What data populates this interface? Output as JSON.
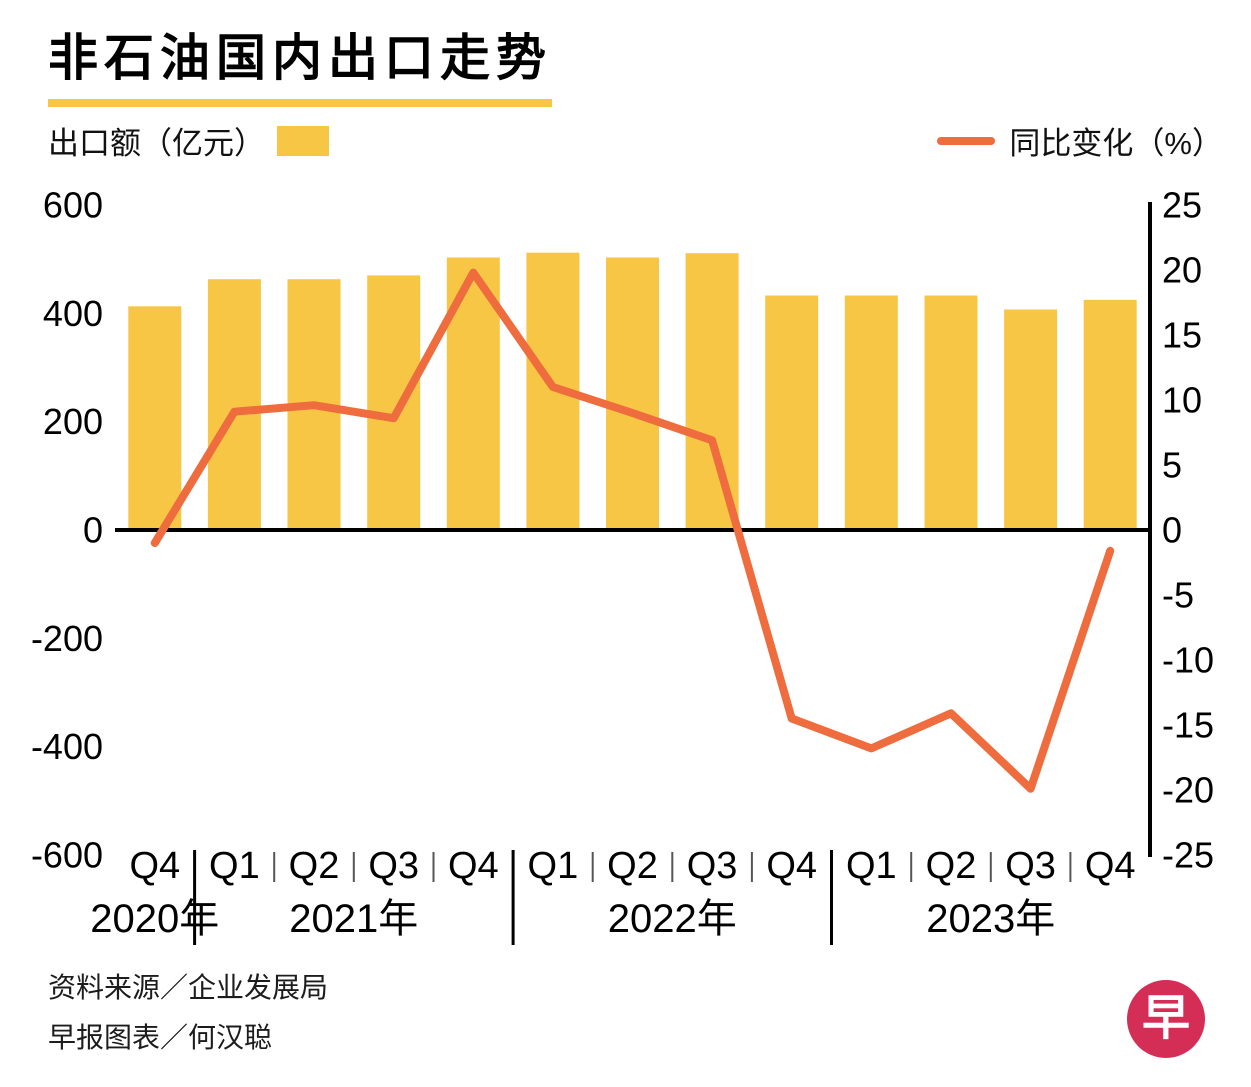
{
  "header": {
    "title": "非石油国内出口走势"
  },
  "legend": {
    "bar_label": "出口额（亿元）",
    "line_label": "同比变化（%）"
  },
  "chart_data": {
    "type": "bar+line",
    "categories": [
      "Q4",
      "Q1",
      "Q2",
      "Q3",
      "Q4",
      "Q1",
      "Q2",
      "Q3",
      "Q4",
      "Q1",
      "Q2",
      "Q3",
      "Q4"
    ],
    "year_groups": [
      {
        "label": "2020年",
        "count": 1
      },
      {
        "label": "2021年",
        "count": 4
      },
      {
        "label": "2022年",
        "count": 4
      },
      {
        "label": "2023年",
        "count": 4
      }
    ],
    "series": [
      {
        "name": "出口额（亿元）",
        "type": "bar",
        "axis": "left",
        "color": "#F8C645",
        "values": [
          413,
          463,
          463,
          470,
          503,
          512,
          503,
          511,
          433,
          433,
          433,
          407,
          425
        ]
      },
      {
        "name": "同比变化（%）",
        "type": "line",
        "axis": "right",
        "color": "#EE6C3E",
        "values": [
          -1.0,
          9.1,
          9.6,
          8.6,
          19.8,
          11.0,
          9.0,
          6.9,
          -14.5,
          -16.8,
          -14.1,
          -19.9,
          -1.6
        ]
      }
    ],
    "left_axis": {
      "ticks": [
        600,
        400,
        200,
        0,
        -200,
        -400,
        -600
      ],
      "min": -600,
      "max": 600
    },
    "right_axis": {
      "ticks": [
        25,
        20,
        15,
        10,
        5,
        0,
        -5,
        -10,
        -15,
        -20,
        -25
      ],
      "min": -25,
      "max": 25
    },
    "grid": "off",
    "legend_position": "top"
  },
  "footer": {
    "source": "资料来源／企业发展局",
    "credit": "早报图表／何汉聪",
    "logo_text": "早"
  },
  "colors": {
    "bar": "#F8C645",
    "line": "#EE6C3E",
    "underline": "#F8C645",
    "logo": "#D42E57",
    "axis": "#000000"
  }
}
